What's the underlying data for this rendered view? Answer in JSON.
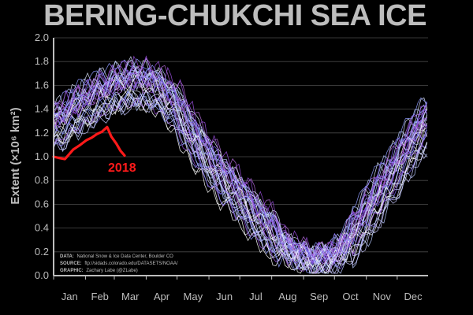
{
  "chart_data": {
    "type": "line",
    "title": "BERING-CHUKCHI SEA ICE",
    "ylabel": "Extent (×10⁶ km²)",
    "ylim": [
      0,
      2.0
    ],
    "yticks": [
      0.0,
      0.2,
      0.4,
      0.6,
      0.8,
      1.0,
      1.2,
      1.4,
      1.6,
      1.8,
      2.0
    ],
    "ytick_labels": [
      "0.0",
      "0.2",
      "0.4",
      "0.6",
      "0.8",
      "1.0",
      "1.2",
      "1.4",
      "1.6",
      "1.8",
      "2.0"
    ],
    "x_categories": [
      "Jan",
      "Feb",
      "Mar",
      "Apr",
      "May",
      "Jun",
      "Jul",
      "Aug",
      "Sep",
      "Oct",
      "Nov",
      "Dec"
    ],
    "grid": true,
    "highlight_series": {
      "name": "2018",
      "color": "#ff1a1a",
      "x": [
        1,
        6,
        12,
        20,
        27,
        33,
        38,
        43,
        48,
        53,
        57,
        62,
        66,
        70
      ],
      "y": [
        1.0,
        0.99,
        0.98,
        1.06,
        1.1,
        1.14,
        1.16,
        1.19,
        1.21,
        1.25,
        1.17,
        1.11,
        1.05,
        1.01
      ]
    },
    "climatology": {
      "description_years": 38,
      "day_of_year": [
        1,
        15,
        32,
        46,
        60,
        75,
        91,
        105,
        121,
        135,
        152,
        166,
        182,
        196,
        213,
        227,
        244,
        258,
        274,
        288,
        305,
        319,
        335,
        349,
        365
      ],
      "mean": [
        1.25,
        1.35,
        1.45,
        1.52,
        1.58,
        1.62,
        1.62,
        1.56,
        1.42,
        1.2,
        0.98,
        0.82,
        0.68,
        0.52,
        0.38,
        0.24,
        0.16,
        0.14,
        0.16,
        0.3,
        0.52,
        0.72,
        0.92,
        1.12,
        1.32
      ],
      "colors": [
        "#ffffff",
        "#dfe9ff",
        "#b9c9ff",
        "#8f9bff",
        "#7a5ff0",
        "#9b4fe0",
        "#b46ad8",
        "#c8c8ff"
      ]
    },
    "annotation": "2018",
    "credits": {
      "data_key": "DATA:",
      "data_val": "National Snow & Ice Data Center, Boulder CO",
      "source_key": "SOURCE:",
      "source_val": "ftp://sidads.colorado.edu/DATASETS/NOAA/",
      "graphic_key": "GRAPHIC:",
      "graphic_val": "Zachary Labe (@ZLabe)"
    }
  }
}
